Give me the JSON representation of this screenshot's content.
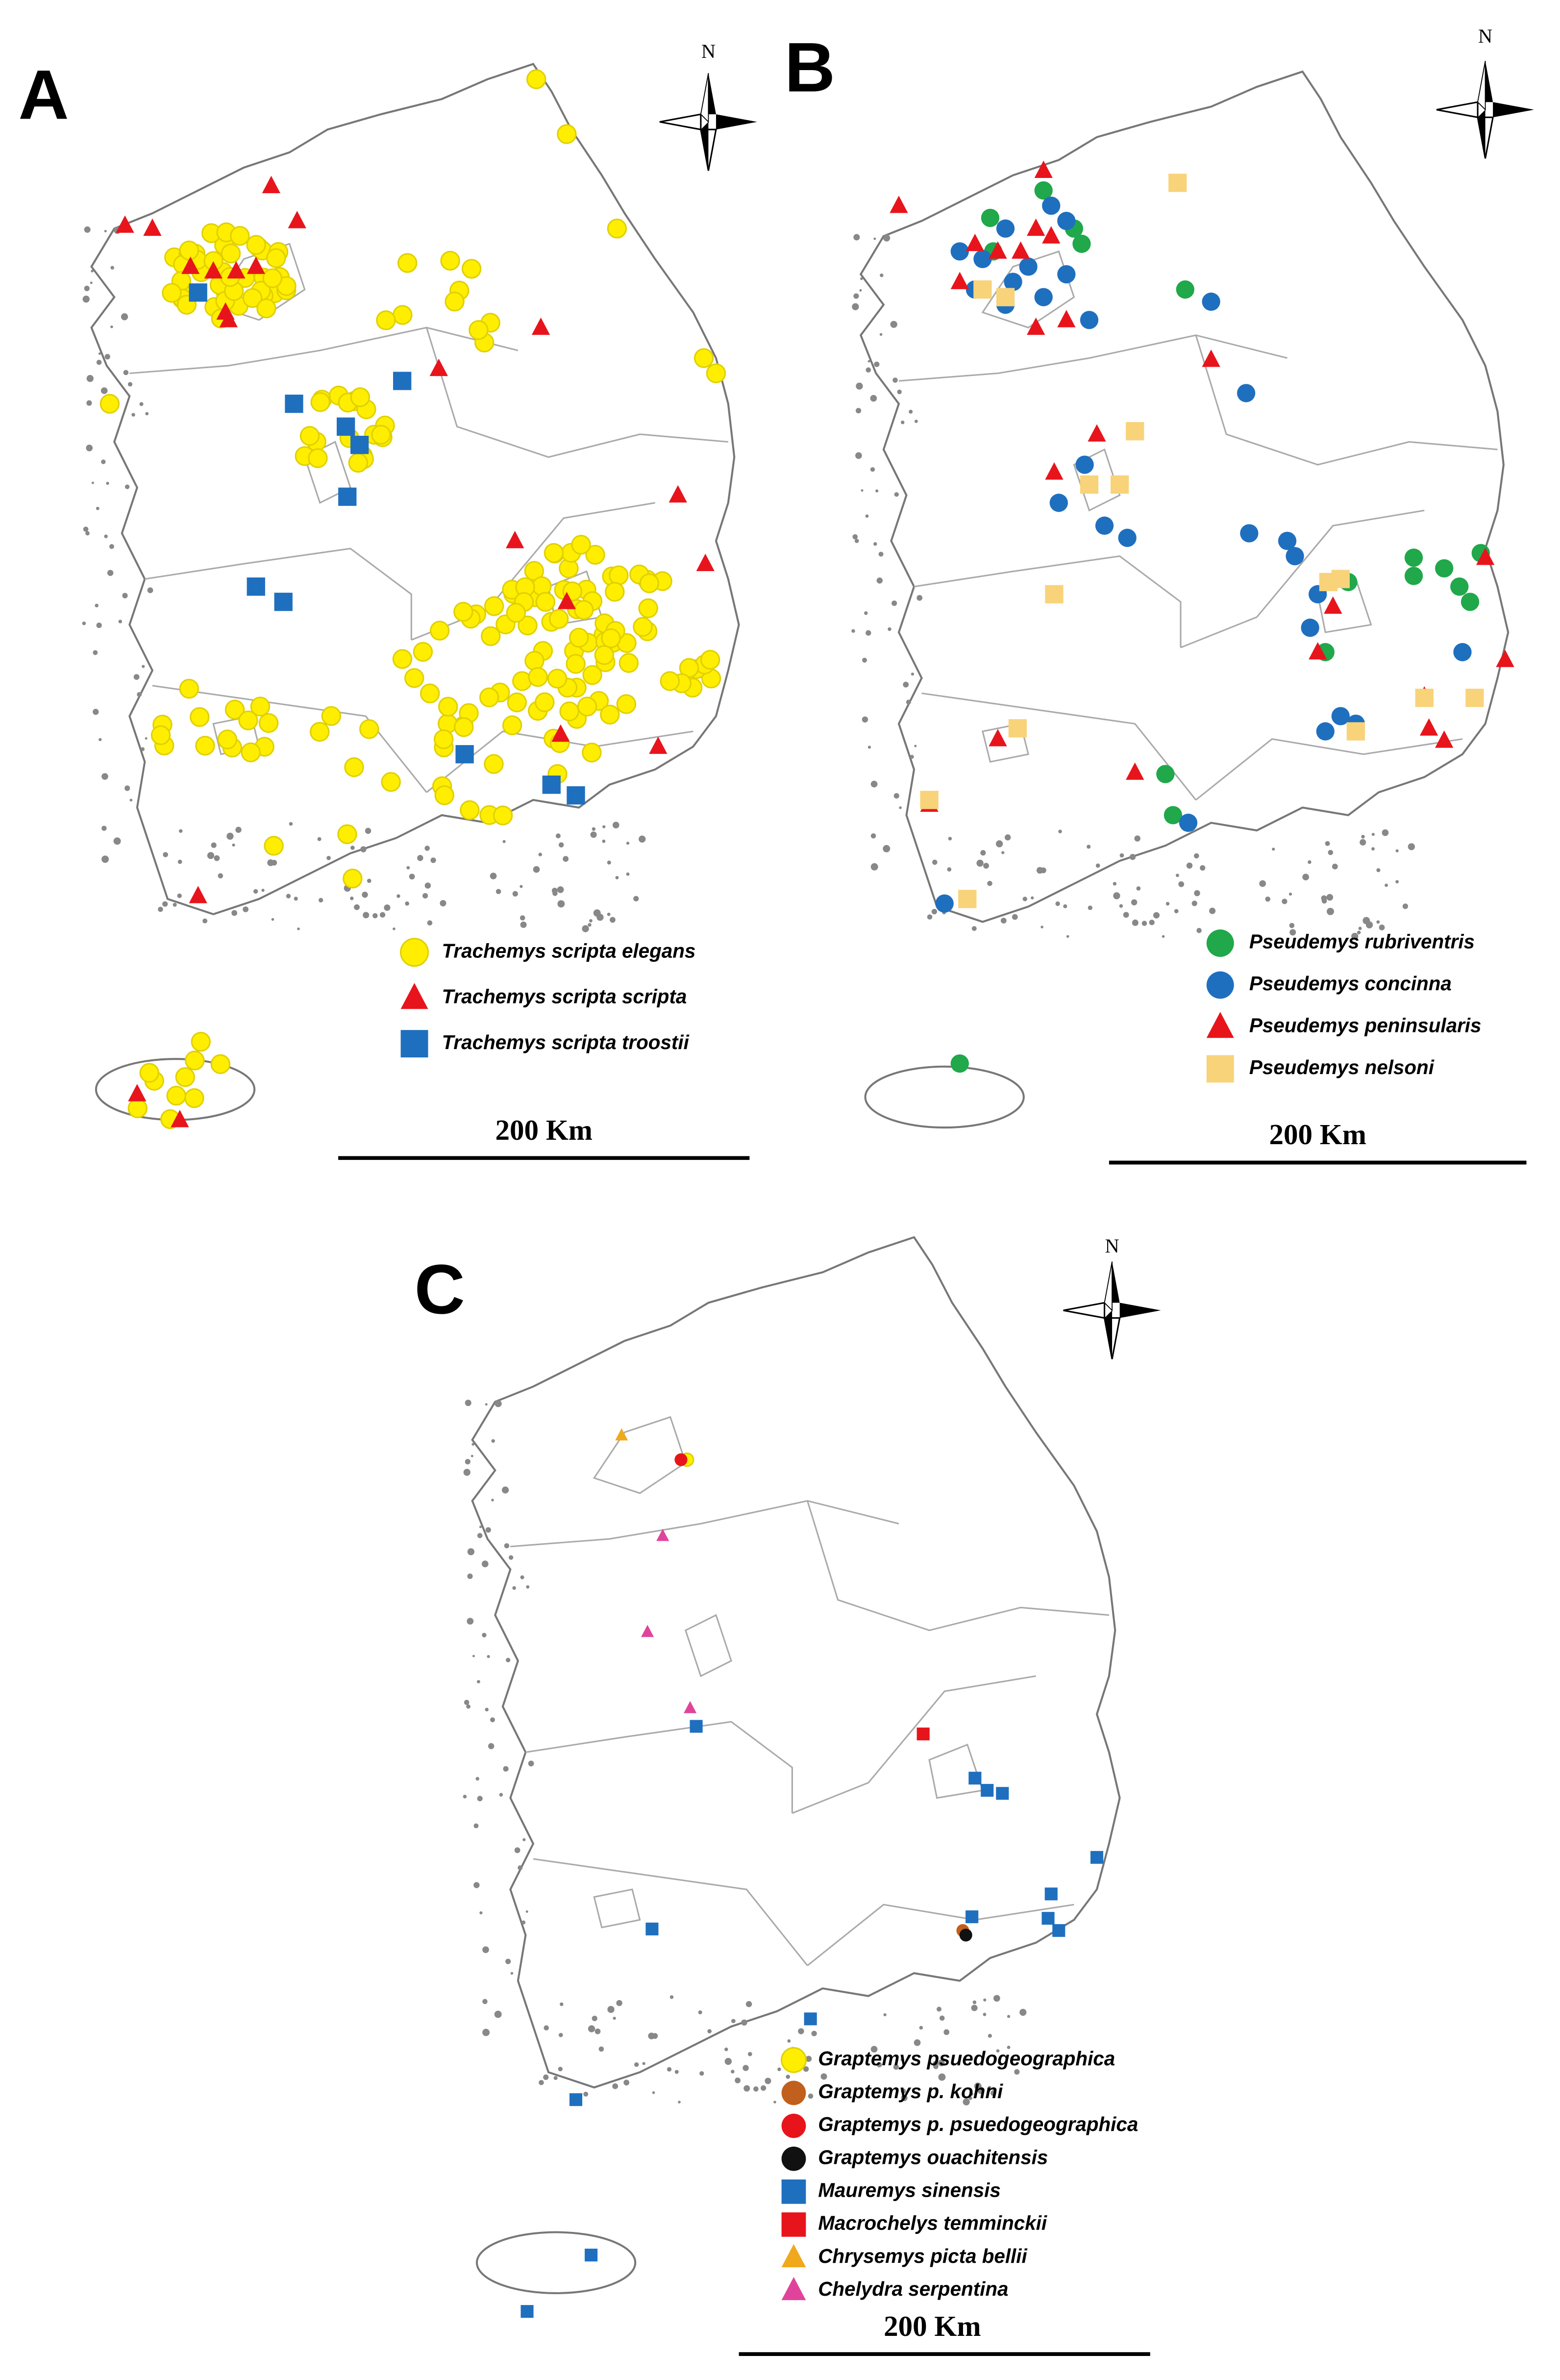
{
  "panels": [
    {
      "label": "A",
      "north": "N",
      "scale": "200 Km",
      "legend": [
        {
          "name": "Trachemys scripta elegans",
          "color": "#ffee00",
          "shape": "circle"
        },
        {
          "name": "Trachemys scripta scripta",
          "color": "#e8141c",
          "shape": "triangle"
        },
        {
          "name": "Trachemys scripta troostii",
          "color": "#1f6fbf",
          "shape": "square"
        }
      ]
    },
    {
      "label": "B",
      "north": "N",
      "scale": "200 Km",
      "legend": [
        {
          "name": "Pseudemys rubriventris",
          "color": "#20a84a",
          "shape": "circle"
        },
        {
          "name": "Pseudemys concinna",
          "color": "#1f6fbf",
          "shape": "circle"
        },
        {
          "name": "Pseudemys peninsularis",
          "color": "#e8141c",
          "shape": "triangle"
        },
        {
          "name": "Pseudemys nelsoni",
          "color": "#f8d37a",
          "shape": "square"
        }
      ]
    },
    {
      "label": "C",
      "north": "N",
      "scale": "200 Km",
      "legend": [
        {
          "name": "Graptemys psuedogeographica",
          "color": "#ffee00",
          "shape": "circle"
        },
        {
          "name": "Graptemys p. kohni",
          "color": "#c0601c",
          "shape": "circle"
        },
        {
          "name": "Graptemys p. psuedogeographica",
          "color": "#e8141c",
          "shape": "circle"
        },
        {
          "name": "Graptemys ouachitensis",
          "color": "#111111",
          "shape": "circle"
        },
        {
          "name": "Mauremys sinensis",
          "color": "#1f6fbf",
          "shape": "square"
        },
        {
          "name": "Macrochelys temminckii",
          "color": "#e8141c",
          "shape": "square"
        },
        {
          "name": "Chrysemys picta bellii",
          "color": "#f0a81c",
          "shape": "triangle"
        },
        {
          "name": "Chelydra serpentina",
          "color": "#e0449a",
          "shape": "triangle"
        }
      ]
    }
  ]
}
